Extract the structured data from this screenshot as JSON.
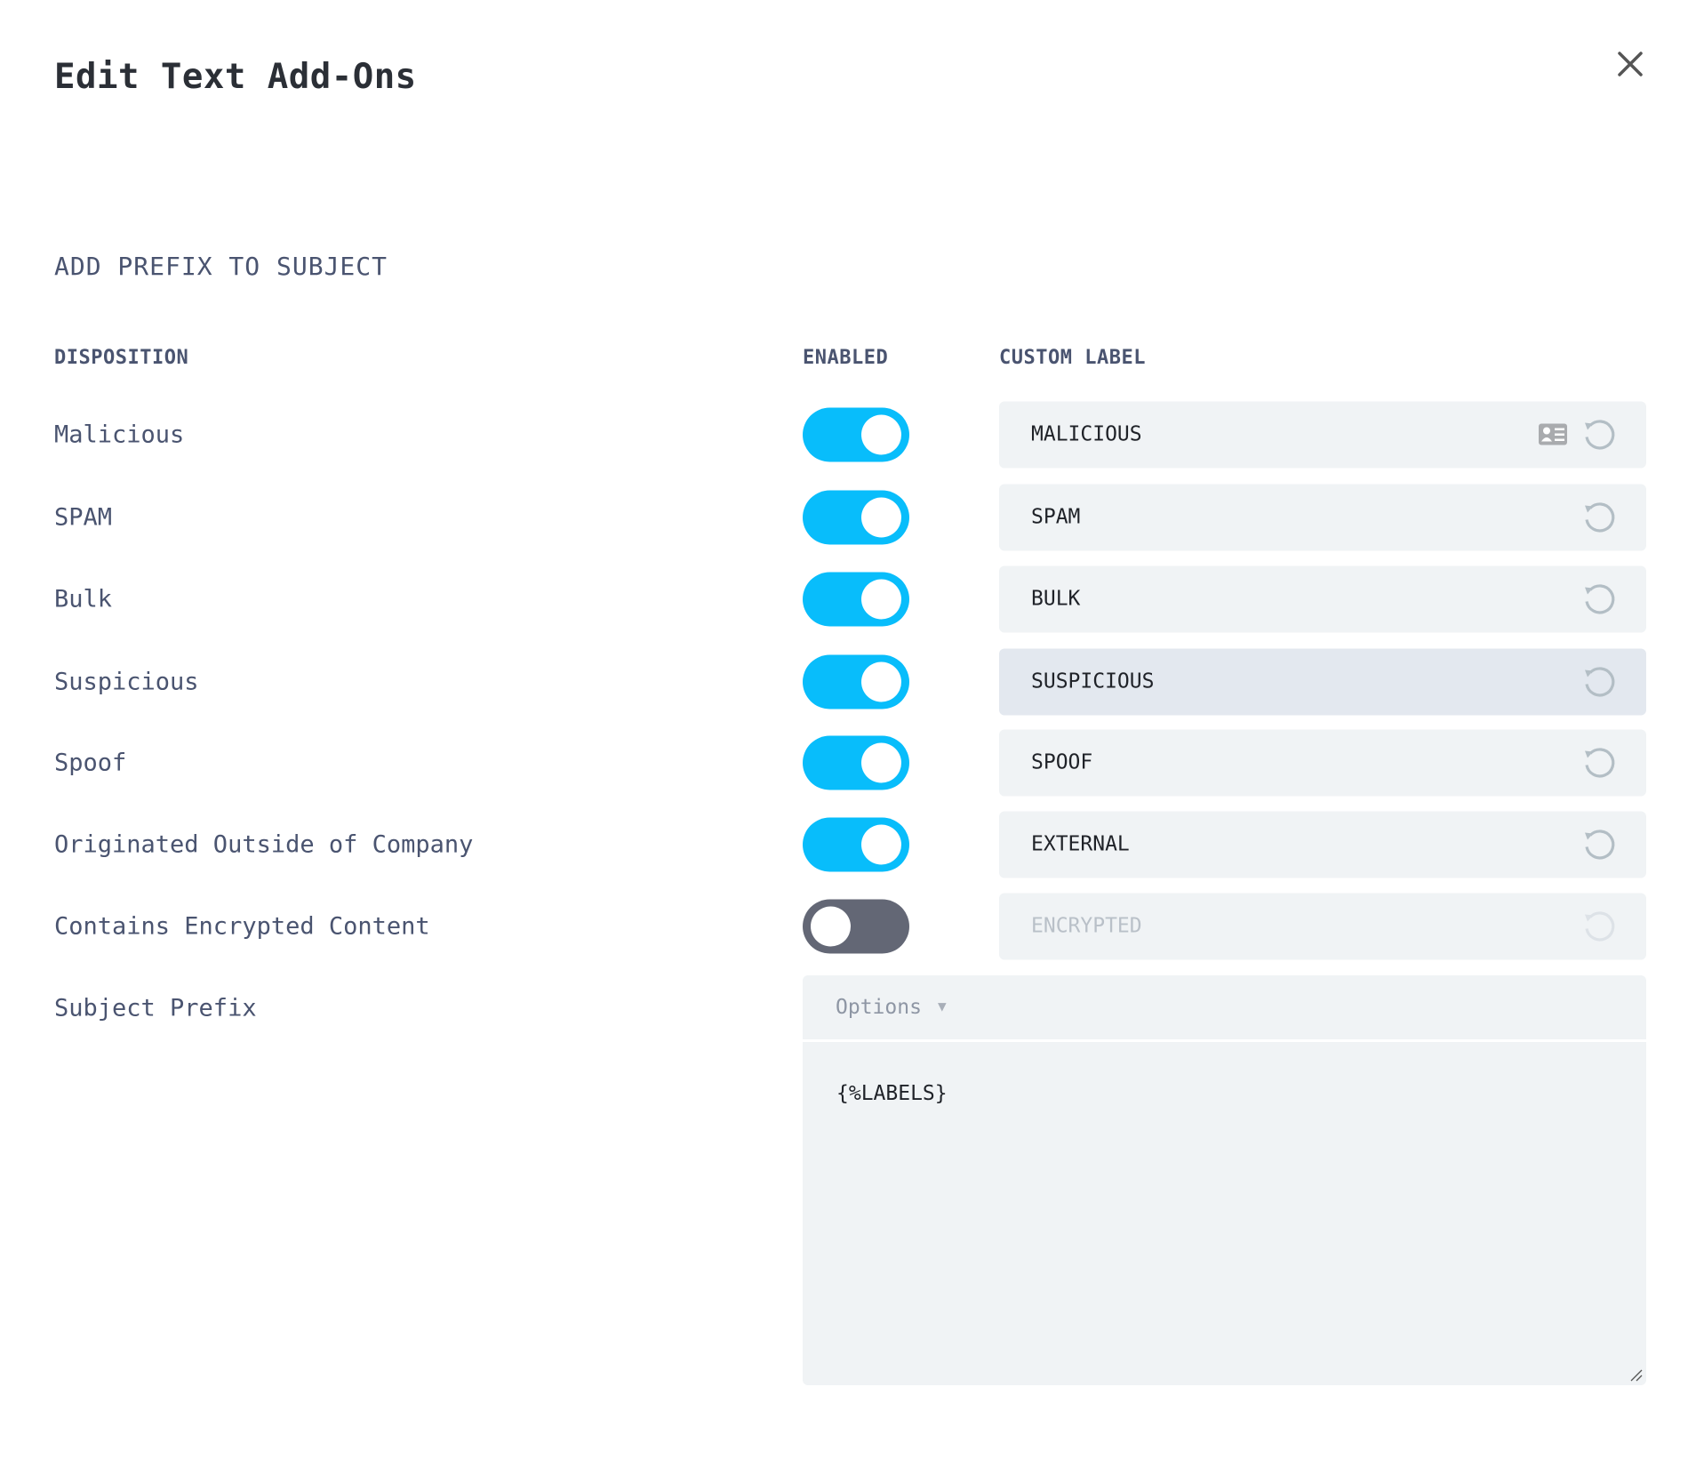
{
  "dialog": {
    "title": "Edit Text Add-Ons",
    "close_icon": "close-icon"
  },
  "section": {
    "title": "ADD PREFIX TO SUBJECT"
  },
  "columns": {
    "disposition": "DISPOSITION",
    "enabled": "ENABLED",
    "custom_label": "CUSTOM LABEL"
  },
  "colors": {
    "toggle_on": "#08bdfb",
    "toggle_off": "#636775",
    "field_bg": "#f0f3f5"
  },
  "rows": [
    {
      "disposition": "Malicious",
      "enabled": true,
      "label": "MALICIOUS"
    },
    {
      "disposition": "SPAM",
      "enabled": true,
      "label": "SPAM"
    },
    {
      "disposition": "Bulk",
      "enabled": true,
      "label": "BULK"
    },
    {
      "disposition": "Suspicious",
      "enabled": true,
      "label": "SUSPICIOUS"
    },
    {
      "disposition": "Spoof",
      "enabled": true,
      "label": "SPOOF"
    },
    {
      "disposition": "Originated Outside of Company",
      "enabled": true,
      "label": "EXTERNAL"
    },
    {
      "disposition": "Contains Encrypted Content",
      "enabled": false,
      "label": "ENCRYPTED"
    }
  ],
  "subject_prefix": {
    "label": "Subject Prefix",
    "options_label": "Options",
    "value": "{%LABELS}"
  }
}
